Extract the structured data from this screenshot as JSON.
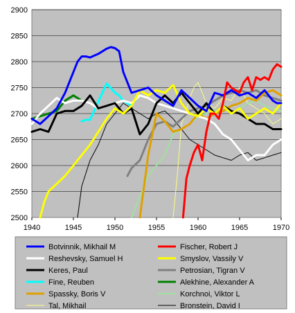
{
  "chart_data": {
    "type": "line",
    "title": "",
    "xlabel": "",
    "ylabel": "",
    "xlim": [
      1940,
      1970
    ],
    "ylim": [
      2500,
      2900
    ],
    "xticks": [
      "1940",
      "1945",
      "1950",
      "1955",
      "1960",
      "1965",
      "1970"
    ],
    "yticks": [
      "2500",
      "2550",
      "2600",
      "2650",
      "2700",
      "2750",
      "2800",
      "2850",
      "2900"
    ],
    "grid": true,
    "plot_background": "#c0c0c0",
    "legend_position": "bottom",
    "series": [
      {
        "name": "Botvinnik, Mikhail M",
        "color": "#0000ff",
        "width": 3,
        "x": [
          1940,
          1941,
          1942,
          1943,
          1944,
          1945,
          1945.5,
          1946,
          1946.5,
          1947,
          1948,
          1949,
          1949.5,
          1950,
          1950.5,
          1951,
          1951.5,
          1952,
          1953,
          1954,
          1955,
          1956,
          1957,
          1958,
          1959,
          1960,
          1961,
          1962,
          1963,
          1964,
          1965,
          1966,
          1967,
          1968,
          1969,
          1969.5,
          1970
        ],
        "y": [
          2690,
          2680,
          2695,
          2710,
          2740,
          2780,
          2800,
          2810,
          2810,
          2808,
          2815,
          2825,
          2828,
          2826,
          2820,
          2780,
          2760,
          2740,
          2745,
          2750,
          2735,
          2725,
          2715,
          2745,
          2730,
          2715,
          2705,
          2740,
          2735,
          2745,
          2735,
          2740,
          2730,
          2745,
          2725,
          2720,
          2720
        ]
      },
      {
        "name": "Fischer, Robert J",
        "color": "#ff0000",
        "width": 3,
        "x": [
          1958.2,
          1958.6,
          1959,
          1959.5,
          1960,
          1960.5,
          1961,
          1961.5,
          1962,
          1962.5,
          1963,
          1963.5,
          1964,
          1964.5,
          1965,
          1965.5,
          1966,
          1966.5,
          1967,
          1967.5,
          1968,
          1968.5,
          1969,
          1969.5,
          1970
        ],
        "y": [
          2500,
          2575,
          2600,
          2625,
          2640,
          2610,
          2665,
          2700,
          2700,
          2690,
          2720,
          2760,
          2750,
          2745,
          2740,
          2760,
          2770,
          2745,
          2770,
          2765,
          2770,
          2765,
          2785,
          2795,
          2790
        ]
      },
      {
        "name": "Reshevsky, Samuel H",
        "color": "#ffffff",
        "width": 3,
        "x": [
          1940,
          1941,
          1942,
          1943,
          1944,
          1945,
          1946,
          1947,
          1948,
          1949,
          1950,
          1951,
          1952,
          1953,
          1954,
          1955,
          1956,
          1957,
          1958,
          1959,
          1960,
          1961,
          1962,
          1963,
          1964,
          1965,
          1966,
          1967,
          1968,
          1969,
          1970
        ],
        "y": [
          2680,
          2700,
          2715,
          2730,
          2720,
          2725,
          2725,
          2720,
          2710,
          2715,
          2720,
          2725,
          2720,
          2735,
          2730,
          2720,
          2715,
          2710,
          2705,
          2700,
          2695,
          2690,
          2680,
          2660,
          2650,
          2630,
          2610,
          2620,
          2620,
          2640,
          2650
        ]
      },
      {
        "name": "Smyslov, Vassily V",
        "color": "#ffff00",
        "width": 3,
        "x": [
          1941,
          1941.5,
          1942,
          1943,
          1944,
          1945,
          1946,
          1947,
          1948,
          1949,
          1950,
          1951,
          1952,
          1953,
          1954,
          1955,
          1956,
          1957,
          1958,
          1959,
          1960,
          1961,
          1962,
          1963,
          1964,
          1965,
          1966,
          1967,
          1968,
          1969,
          1970
        ],
        "y": [
          2500,
          2530,
          2550,
          2565,
          2580,
          2600,
          2620,
          2640,
          2665,
          2690,
          2710,
          2700,
          2715,
          2745,
          2735,
          2745,
          2740,
          2755,
          2720,
          2700,
          2695,
          2710,
          2700,
          2715,
          2700,
          2710,
          2690,
          2700,
          2710,
          2700,
          2720
        ]
      },
      {
        "name": "Keres, Paul",
        "color": "#000000",
        "width": 3,
        "x": [
          1940,
          1941,
          1942,
          1943,
          1944,
          1945,
          1946,
          1947,
          1948,
          1949,
          1950,
          1951,
          1952,
          1953,
          1954,
          1955,
          1956,
          1957,
          1958,
          1959,
          1960,
          1961,
          1962,
          1963,
          1964,
          1965,
          1966,
          1967,
          1968,
          1969,
          1970
        ],
        "y": [
          2665,
          2670,
          2665,
          2700,
          2705,
          2705,
          2715,
          2735,
          2710,
          2715,
          2720,
          2700,
          2710,
          2660,
          2680,
          2720,
          2735,
          2720,
          2740,
          2720,
          2700,
          2720,
          2700,
          2715,
          2705,
          2700,
          2690,
          2680,
          2680,
          2670,
          2670
        ]
      },
      {
        "name": "Petrosian, Tigran V",
        "color": "#808080",
        "width": 3,
        "x": [
          1951.5,
          1952,
          1953,
          1954,
          1955,
          1956,
          1957,
          1958,
          1959,
          1960,
          1961,
          1962,
          1963,
          1964,
          1965,
          1966,
          1967,
          1968,
          1969,
          1970
        ],
        "y": [
          2580,
          2595,
          2610,
          2650,
          2680,
          2685,
          2675,
          2690,
          2705,
          2710,
          2715,
          2725,
          2735,
          2740,
          2745,
          2740,
          2745,
          2735,
          2730,
          2725
        ]
      },
      {
        "name": "Fine, Reuben",
        "color": "#00ffff",
        "width": 3,
        "x": [
          1946,
          1946.5,
          1947,
          1949,
          1950,
          1950.5,
          1951,
          1951.5,
          1952
        ],
        "y": [
          2685,
          2688,
          2688,
          2758,
          2740,
          2735,
          2725,
          2720,
          2715
        ]
      },
      {
        "name": "Alekhine, Alexander A",
        "color": "#008000",
        "width": 3,
        "x": [
          1940,
          1941,
          1942,
          1943,
          1944,
          1945,
          1946
        ],
        "y": [
          2690,
          2695,
          2700,
          2705,
          2725,
          2735,
          2725
        ]
      },
      {
        "name": "Spassky, Boris V",
        "color": "#e0a000",
        "width": 3,
        "x": [
          1953,
          1953.5,
          1954,
          1955,
          1956,
          1957,
          1958,
          1959,
          1960,
          1961,
          1962,
          1963,
          1964,
          1965,
          1966,
          1967,
          1968,
          1969,
          1970
        ],
        "y": [
          2500,
          2560,
          2620,
          2700,
          2685,
          2665,
          2670,
          2680,
          2700,
          2690,
          2700,
          2705,
          2715,
          2720,
          2730,
          2725,
          2740,
          2745,
          2735
        ]
      },
      {
        "name": "Korchnoi, Viktor L",
        "color": "#a0e0a0",
        "width": 2,
        "x": [
          1952,
          1953,
          1954,
          1955,
          1956,
          1957,
          1958,
          1959,
          1960,
          1961,
          1962,
          1963,
          1964,
          1965,
          1966,
          1967,
          1968,
          1969,
          1970
        ],
        "y": [
          2500,
          2540,
          2580,
          2600,
          2620,
          2660,
          2670,
          2680,
          2695,
          2700,
          2705,
          2710,
          2700,
          2710,
          2720,
          2725,
          2715,
          2710,
          2705
        ]
      },
      {
        "name": "Tal, Mikhail",
        "color": "#ffff80",
        "width": 1,
        "x": [
          1957,
          1957.5,
          1958,
          1958.5,
          1959,
          1959.5,
          1960,
          1960.5,
          1961,
          1962,
          1963,
          1964,
          1965,
          1966,
          1967,
          1968,
          1969,
          1970
        ],
        "y": [
          2500,
          2580,
          2680,
          2700,
          2730,
          2750,
          2760,
          2740,
          2720,
          2710,
          2730,
          2725,
          2750,
          2720,
          2710,
          2700,
          2680,
          2690
        ]
      },
      {
        "name": "Bronstein, David I",
        "color": "#000000",
        "width": 1,
        "x": [
          1945.5,
          1946,
          1947,
          1948,
          1949,
          1950,
          1951,
          1952,
          1953,
          1954,
          1955,
          1956,
          1957,
          1958,
          1959,
          1960,
          1961,
          1962,
          1963,
          1964,
          1965,
          1966,
          1967,
          1968,
          1969,
          1970
        ],
        "y": [
          2500,
          2560,
          2610,
          2640,
          2680,
          2700,
          2720,
          2710,
          2700,
          2690,
          2700,
          2705,
          2690,
          2670,
          2650,
          2640,
          2630,
          2620,
          2615,
          2610,
          2620,
          2625,
          2610,
          2615,
          2620,
          2625
        ]
      }
    ]
  }
}
